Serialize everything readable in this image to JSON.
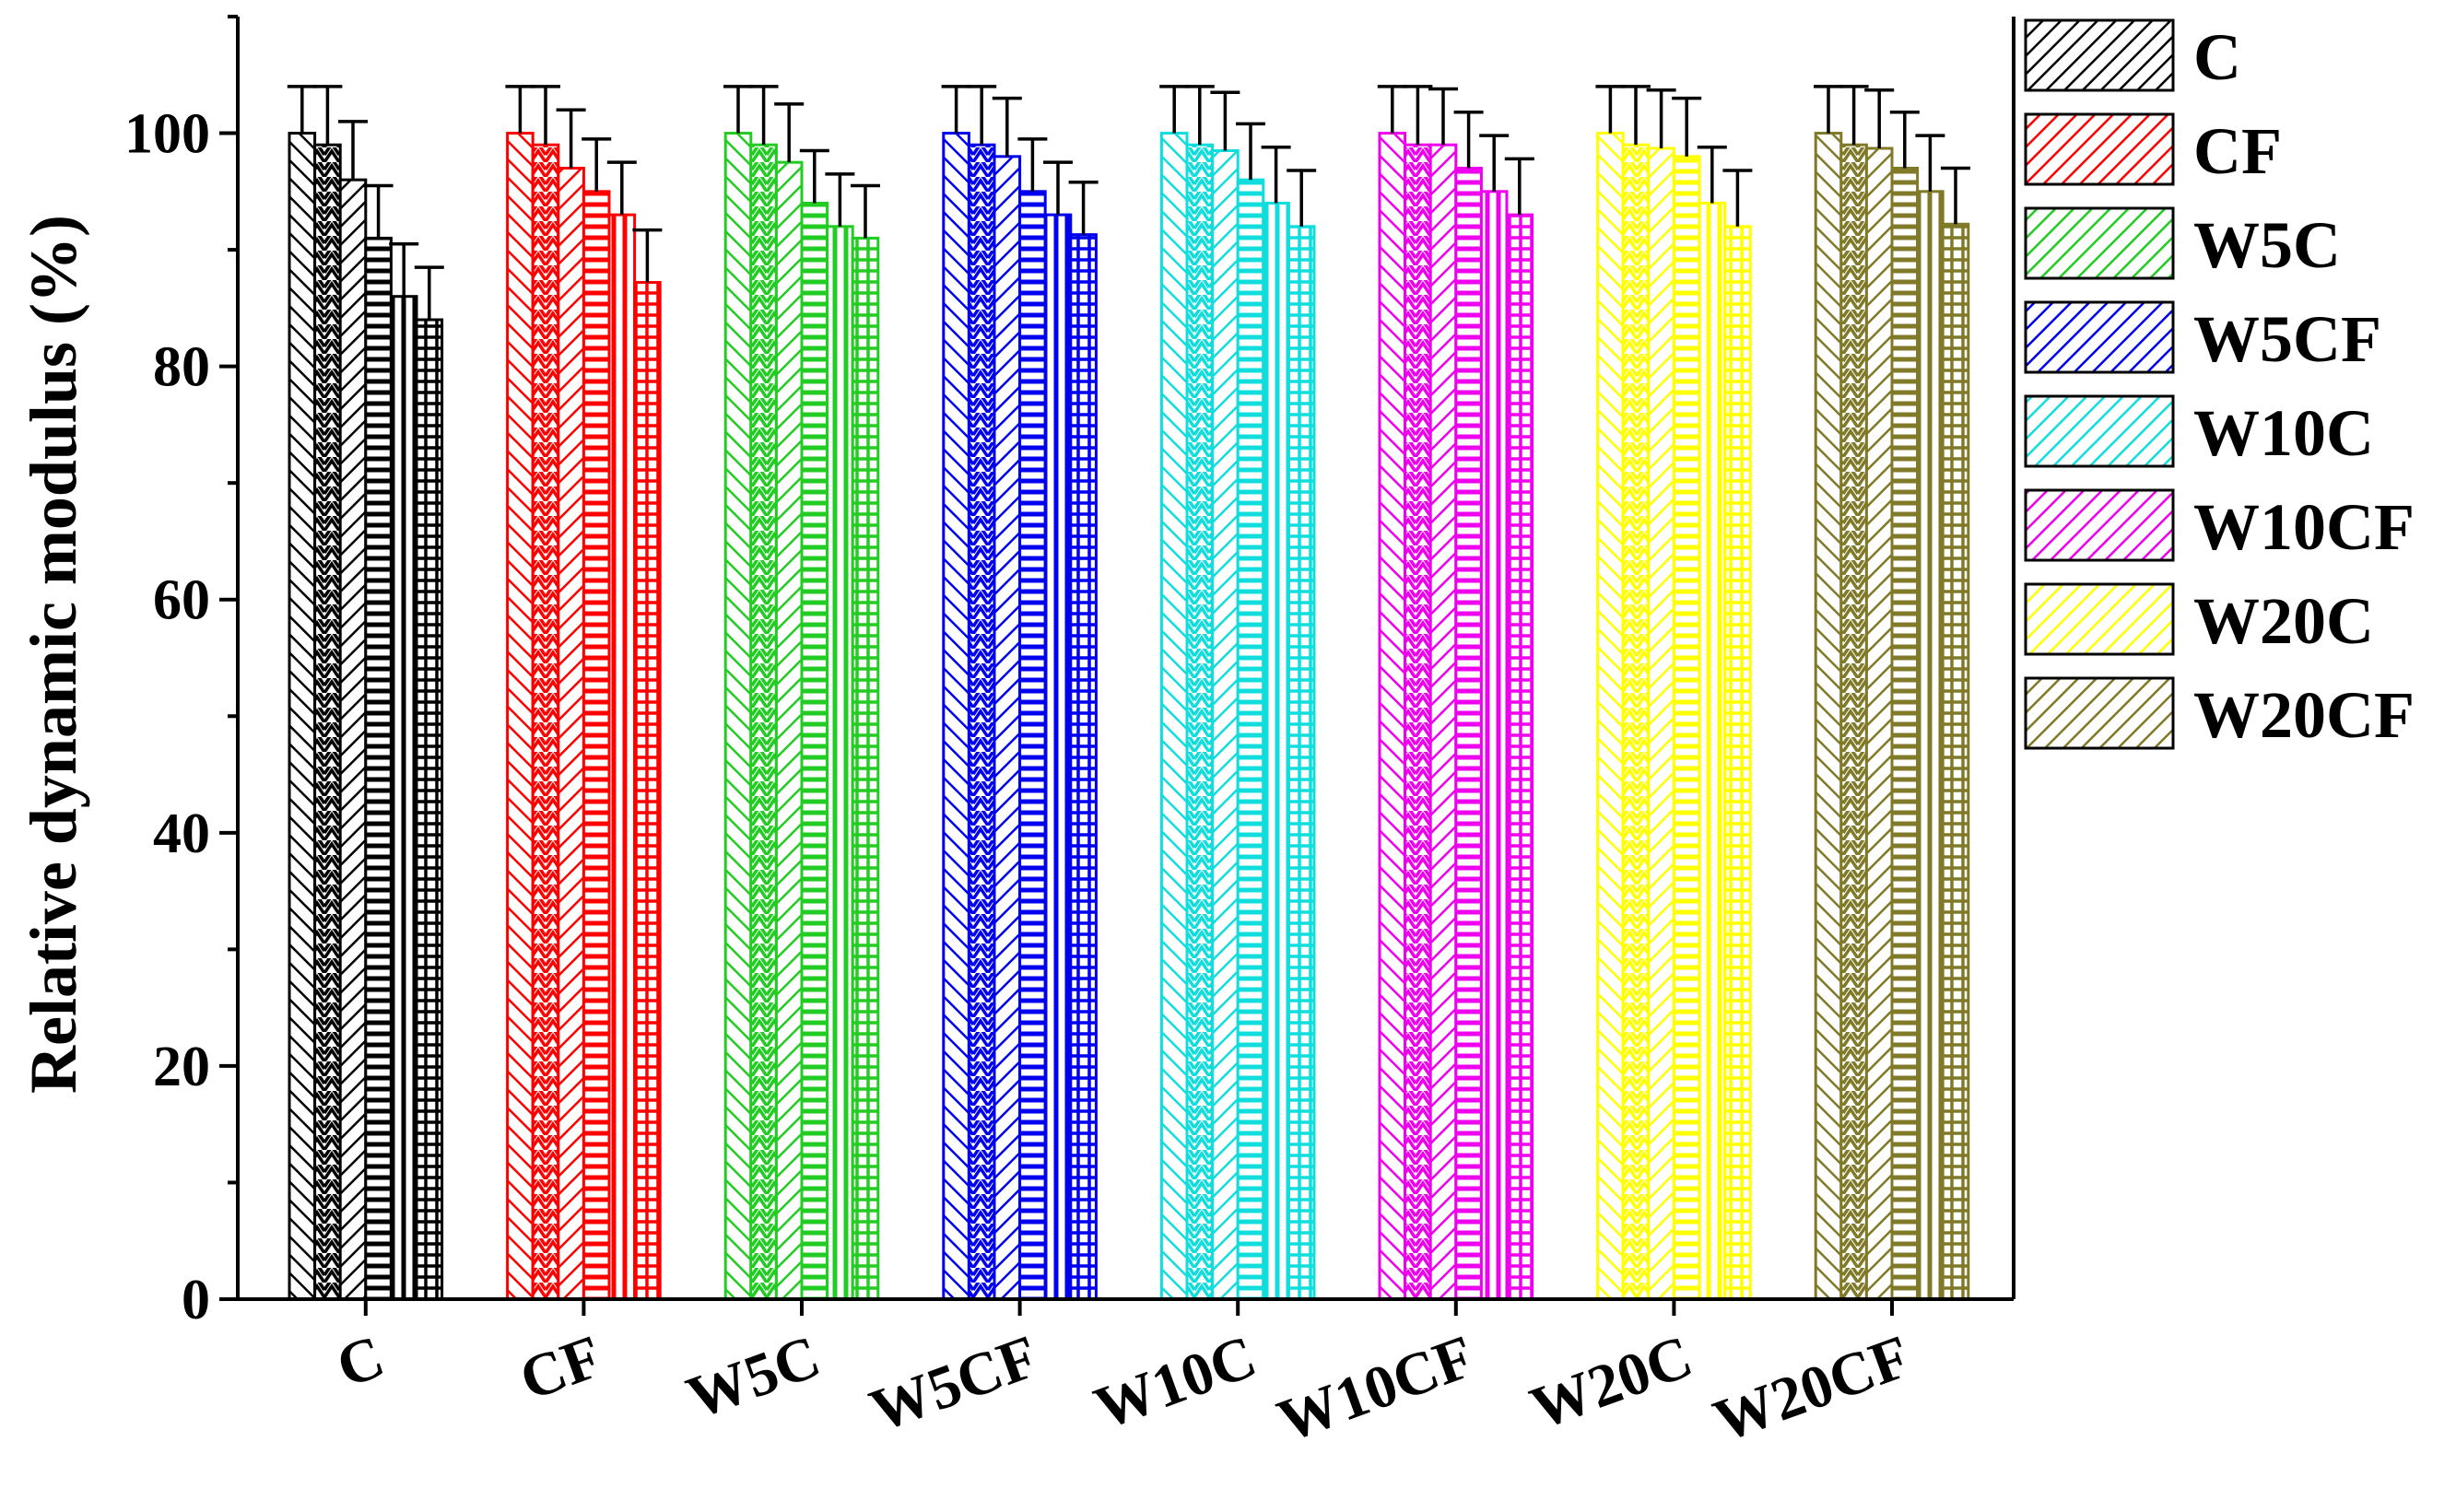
{
  "chart_data": {
    "type": "bar",
    "title": "",
    "xlabel": "",
    "ylabel": "Relative dynamic modulus (%)",
    "ylim": [
      0,
      110
    ],
    "yticks": [
      0,
      20,
      40,
      60,
      80,
      100
    ],
    "grid": false,
    "legend_position": "right",
    "categories": [
      "C",
      "CF",
      "W5C",
      "W5CF",
      "W10C",
      "W10CF",
      "W20C",
      "W20CF"
    ],
    "colors": [
      "#000000",
      "#ff0000",
      "#22cc22",
      "#0000ee",
      "#11dddd",
      "#ee00ee",
      "#ffff00",
      "#807a28"
    ],
    "legend": [
      "C",
      "CF",
      "W5C",
      "W5CF",
      "W10C",
      "W10CF",
      "W20C",
      "W20CF"
    ],
    "groups": [
      {
        "values": [
          100,
          99,
          96,
          91,
          86,
          84
        ],
        "errors": [
          4,
          5,
          5,
          4.5,
          4.5,
          4.5
        ]
      },
      {
        "values": [
          100,
          99,
          97,
          95,
          93,
          87.2
        ],
        "errors": [
          4,
          5,
          5,
          4.5,
          4.5,
          4.5
        ]
      },
      {
        "values": [
          100,
          99,
          97.5,
          94,
          92,
          91
        ],
        "errors": [
          4,
          5,
          5,
          4.5,
          4.5,
          4.5
        ]
      },
      {
        "values": [
          100,
          99,
          98,
          95,
          93,
          91.3
        ],
        "errors": [
          4,
          5,
          5,
          4.5,
          4.5,
          4.5
        ]
      },
      {
        "values": [
          100,
          99,
          98.5,
          96,
          94,
          92
        ],
        "errors": [
          4,
          5,
          5,
          4.8,
          4.8,
          4.8
        ]
      },
      {
        "values": [
          100,
          99,
          99,
          97,
          95,
          93
        ],
        "errors": [
          4,
          5,
          4.8,
          4.8,
          4.8,
          4.8
        ]
      },
      {
        "values": [
          100,
          99,
          98.7,
          98,
          94,
          92
        ],
        "errors": [
          4,
          5,
          5,
          5,
          4.8,
          4.8
        ]
      },
      {
        "values": [
          100,
          99,
          98.7,
          97,
          95,
          92.2
        ],
        "errors": [
          4,
          5,
          5,
          4.8,
          4.8,
          4.8
        ]
      }
    ]
  }
}
